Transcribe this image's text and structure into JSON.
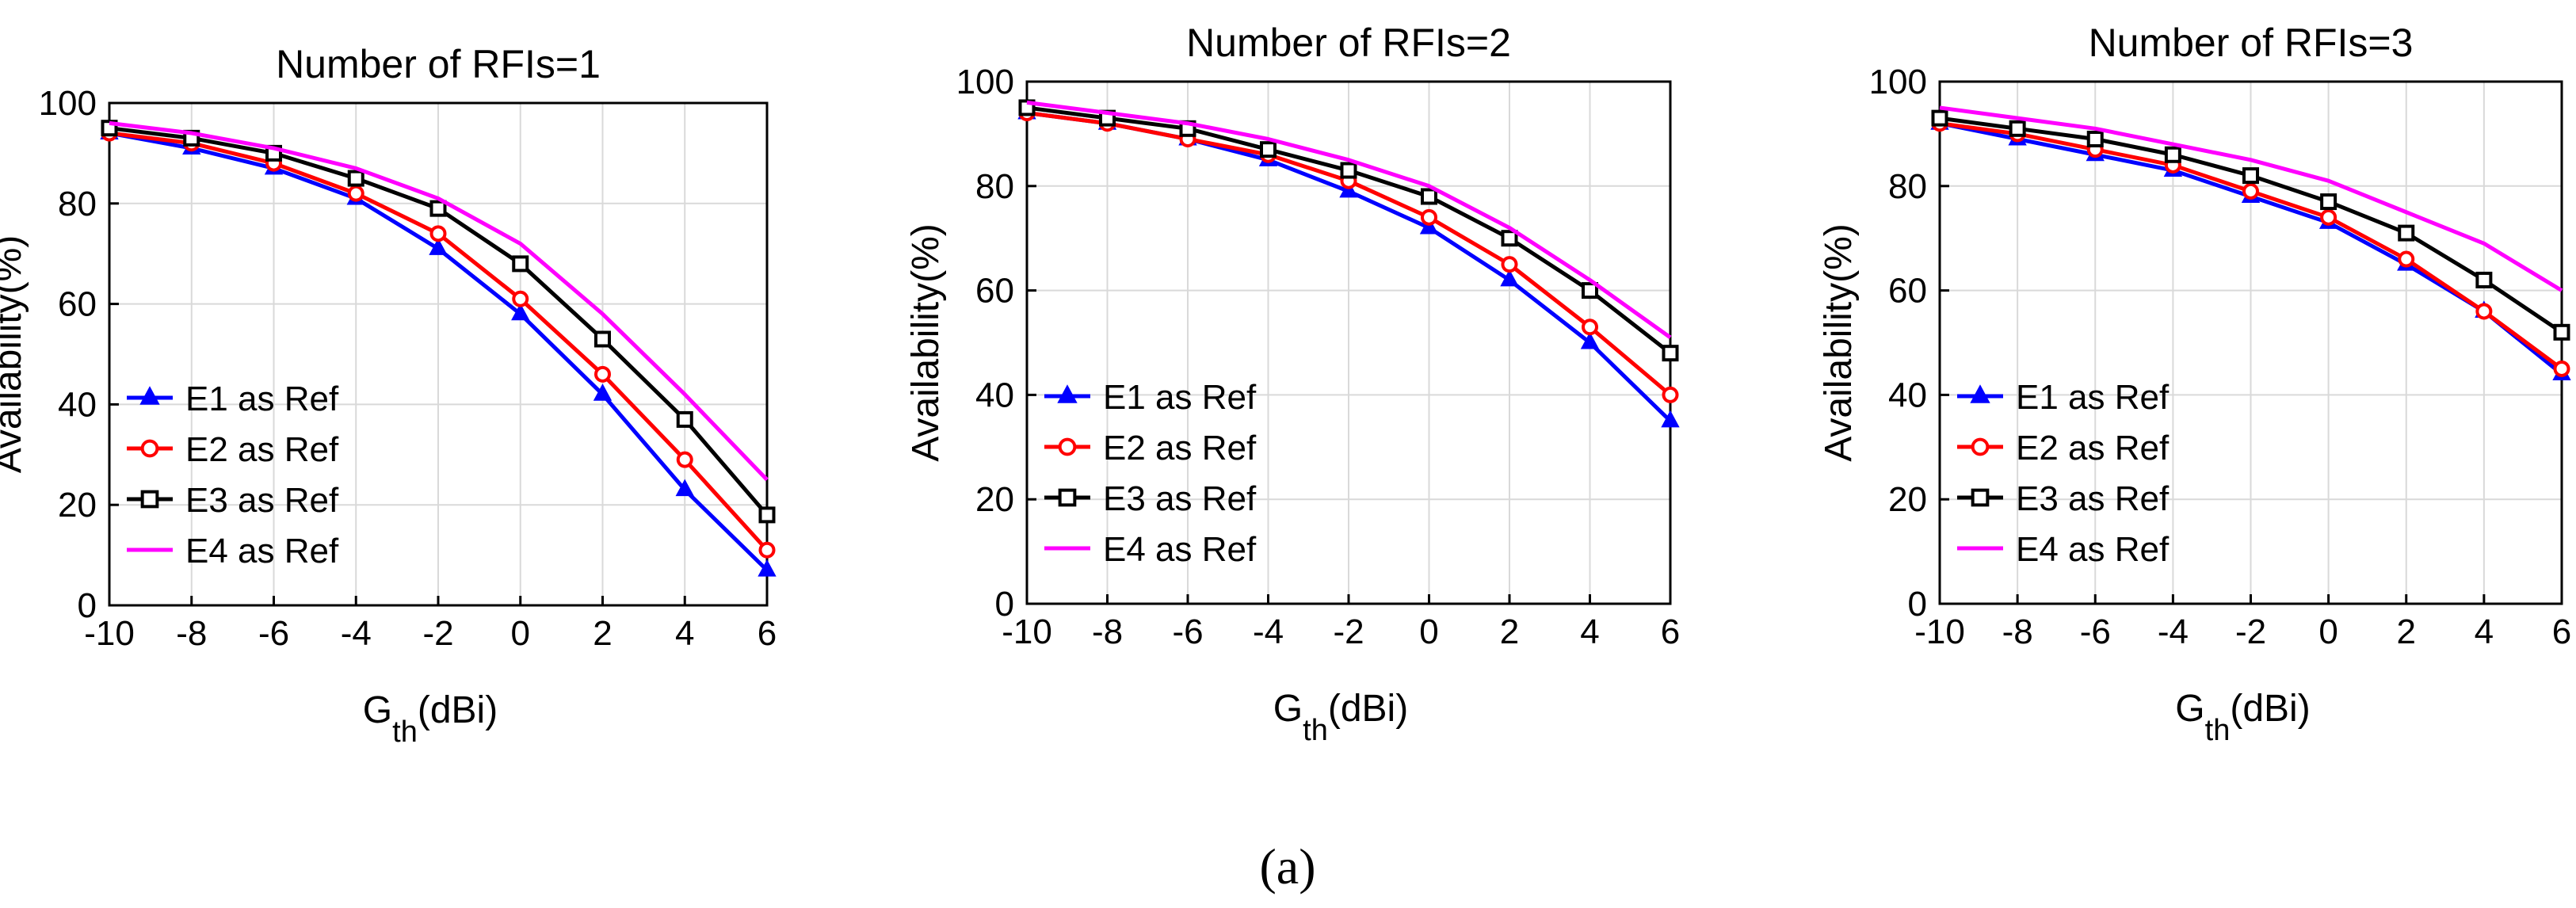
{
  "chart_data": [
    {
      "type": "line",
      "title": "Number of RFIs=1",
      "xlabel_main": "G",
      "xlabel_sub": "th",
      "xlabel_unit": "(dBi)",
      "ylabel": "Availability(%)",
      "x": [
        -10,
        -8,
        -6,
        -4,
        -2,
        0,
        2,
        4,
        6
      ],
      "xlim": [
        -10,
        6
      ],
      "ylim": [
        0,
        100
      ],
      "xticks": [
        "-10",
        "-8",
        "-6",
        "-4",
        "-2",
        "0",
        "2",
        "4",
        "6"
      ],
      "yticks": [
        "0",
        "20",
        "40",
        "60",
        "80",
        "100"
      ],
      "grid": true,
      "legend_position": "bottom-left",
      "series": [
        {
          "name": "E1 as Ref",
          "color": "#0000ff",
          "marker": "triangle",
          "values": [
            94,
            91,
            87,
            81,
            71,
            58,
            42,
            23,
            7
          ]
        },
        {
          "name": "E2 as Ref",
          "color": "#ff0000",
          "marker": "circle",
          "values": [
            94,
            92,
            88,
            82,
            74,
            61,
            46,
            29,
            11
          ]
        },
        {
          "name": "E3 as Ref",
          "color": "#000000",
          "marker": "square",
          "values": [
            95,
            93,
            90,
            85,
            79,
            68,
            53,
            37,
            18
          ]
        },
        {
          "name": "E4 as Ref",
          "color": "#ff00ff",
          "marker": "none",
          "values": [
            96,
            94,
            91,
            87,
            81,
            72,
            58,
            42,
            25
          ]
        }
      ]
    },
    {
      "type": "line",
      "title": "Number of RFIs=2",
      "xlabel_main": "G",
      "xlabel_sub": "th",
      "xlabel_unit": "(dBi)",
      "ylabel": "Availability(%)",
      "x": [
        -10,
        -8,
        -6,
        -4,
        -2,
        0,
        2,
        4,
        6
      ],
      "xlim": [
        -10,
        6
      ],
      "ylim": [
        0,
        100
      ],
      "xticks": [
        "-10",
        "-8",
        "-6",
        "-4",
        "-2",
        "0",
        "2",
        "4",
        "6"
      ],
      "yticks": [
        "0",
        "20",
        "40",
        "60",
        "80",
        "100"
      ],
      "grid": true,
      "legend_position": "bottom-left",
      "series": [
        {
          "name": "E1 as Ref",
          "color": "#0000ff",
          "marker": "triangle",
          "values": [
            94,
            92,
            89,
            85,
            79,
            72,
            62,
            50,
            35
          ]
        },
        {
          "name": "E2 as Ref",
          "color": "#ff0000",
          "marker": "circle",
          "values": [
            94,
            92,
            89,
            86,
            81,
            74,
            65,
            53,
            40
          ]
        },
        {
          "name": "E3 as Ref",
          "color": "#000000",
          "marker": "square",
          "values": [
            95,
            93,
            91,
            87,
            83,
            78,
            70,
            60,
            48
          ]
        },
        {
          "name": "E4 as Ref",
          "color": "#ff00ff",
          "marker": "none",
          "values": [
            96,
            94,
            92,
            89,
            85,
            80,
            72,
            62,
            51
          ]
        }
      ]
    },
    {
      "type": "line",
      "title": "Number of RFIs=3",
      "xlabel_main": "G",
      "xlabel_sub": "th",
      "xlabel_unit": "(dBi)",
      "ylabel": "Availability(%)",
      "x": [
        -10,
        -8,
        -6,
        -4,
        -2,
        0,
        2,
        4,
        6
      ],
      "xlim": [
        -10,
        6
      ],
      "ylim": [
        0,
        100
      ],
      "xticks": [
        "-10",
        "-8",
        "-6",
        "-4",
        "-2",
        "0",
        "2",
        "4",
        "6"
      ],
      "yticks": [
        "0",
        "20",
        "40",
        "60",
        "80",
        "100"
      ],
      "grid": true,
      "legend_position": "bottom-left",
      "series": [
        {
          "name": "E1 as Ref",
          "color": "#0000ff",
          "marker": "triangle",
          "values": [
            92,
            89,
            86,
            83,
            78,
            73,
            65,
            56,
            44
          ]
        },
        {
          "name": "E2 as Ref",
          "color": "#ff0000",
          "marker": "circle",
          "values": [
            92,
            90,
            87,
            84,
            79,
            74,
            66,
            56,
            45
          ]
        },
        {
          "name": "E3 as Ref",
          "color": "#000000",
          "marker": "square",
          "values": [
            93,
            91,
            89,
            86,
            82,
            77,
            71,
            62,
            52
          ]
        },
        {
          "name": "E4 as Ref",
          "color": "#ff00ff",
          "marker": "none",
          "values": [
            95,
            93,
            91,
            88,
            85,
            81,
            75,
            69,
            60
          ]
        }
      ]
    }
  ],
  "caption": "(a)"
}
